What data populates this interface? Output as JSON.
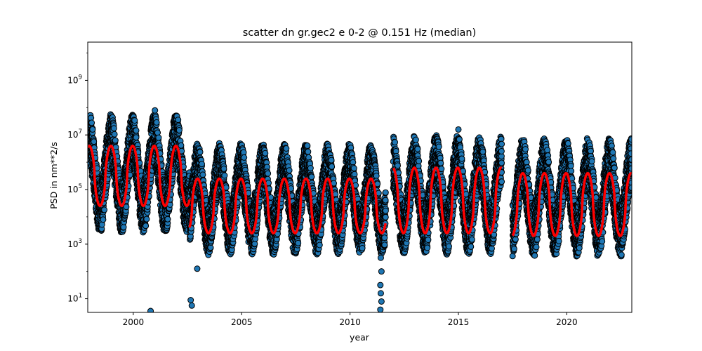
{
  "chart_data": {
    "type": "scatter",
    "title": "scatter dn gr.gec2 e 0-2 @ 0.151 Hz (median)",
    "xlabel": "year",
    "ylabel": "PSD in nm**2/s",
    "xlim": [
      1997.9,
      2023.0
    ],
    "ylim_log10": [
      0.5,
      10.4
    ],
    "yscale": "log",
    "x_ticks": [
      2000,
      2005,
      2010,
      2015,
      2020
    ],
    "x_tick_labels": [
      "2000",
      "2005",
      "2010",
      "2015",
      "2020"
    ],
    "y_ticks_log10": [
      1,
      3,
      5,
      7,
      9
    ],
    "y_tick_labels": [
      {
        "base": "10",
        "exp": "1"
      },
      {
        "base": "10",
        "exp": "3"
      },
      {
        "base": "10",
        "exp": "5"
      },
      {
        "base": "10",
        "exp": "7"
      },
      {
        "base": "10",
        "exp": "9"
      }
    ],
    "grid": false,
    "legend": "none",
    "scatter_color": "#1f77b4",
    "scatter_edge_color": "#000000",
    "median_color": "#ff0000",
    "seasonal_cycle_years": 1.0,
    "segments": [
      {
        "from": 1997.9,
        "to": 2002.6,
        "median_low_log10": 4.4,
        "median_high_log10": 6.6,
        "scatter_low_log10": 3.4,
        "scatter_high_log10": 7.8
      },
      {
        "from": 2002.6,
        "to": 2011.65,
        "median_low_log10": 3.4,
        "median_high_log10": 5.4,
        "scatter_low_log10": 2.6,
        "scatter_high_log10": 6.7
      },
      {
        "from": 2012.0,
        "to": 2017.0,
        "median_low_log10": 3.4,
        "median_high_log10": 5.8,
        "scatter_low_log10": 2.6,
        "scatter_high_log10": 7.0
      },
      {
        "from": 2017.5,
        "to": 2023.0,
        "median_low_log10": 3.3,
        "median_high_log10": 5.6,
        "scatter_low_log10": 2.5,
        "scatter_high_log10": 6.9
      }
    ],
    "outliers": [
      {
        "x": 2000.8,
        "y_log10": 0.55
      },
      {
        "x": 2002.65,
        "y_log10": 0.95
      },
      {
        "x": 2002.7,
        "y_log10": 0.75
      },
      {
        "x": 2002.95,
        "y_log10": 2.1
      },
      {
        "x": 2001.0,
        "y_log10": 7.9
      },
      {
        "x": 2011.4,
        "y_log10": 0.6
      },
      {
        "x": 2011.45,
        "y_log10": 0.9
      },
      {
        "x": 2011.42,
        "y_log10": 1.2
      },
      {
        "x": 2011.4,
        "y_log10": 1.5
      },
      {
        "x": 2011.45,
        "y_log10": 2.0
      },
      {
        "x": 2011.42,
        "y_log10": 2.5
      },
      {
        "x": 2015.0,
        "y_log10": 7.2
      }
    ]
  }
}
